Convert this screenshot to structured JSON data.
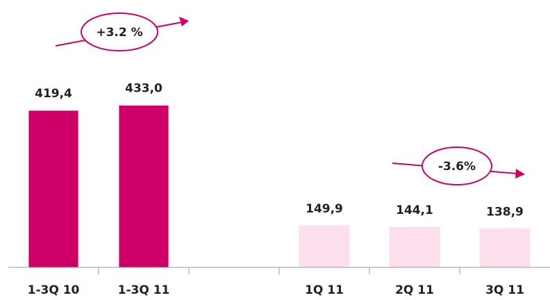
{
  "chart_data": {
    "type": "bar",
    "categories": [
      "1-3Q 10",
      "1-3Q 11",
      null,
      "1Q 11",
      "2Q 11",
      "3Q 11"
    ],
    "series": [
      {
        "color": "#cc0066",
        "values": [
          419.4,
          433.0,
          null,
          null,
          null,
          null
        ],
        "value_labels": [
          "419,4",
          "433,0",
          null,
          null,
          null,
          null
        ]
      },
      {
        "color": "#fde0ee",
        "axis": "y2",
        "values": [
          null,
          null,
          null,
          149.9,
          144.1,
          138.9
        ],
        "value_labels": [
          null,
          null,
          null,
          "149,9",
          "144,1",
          "138,9"
        ]
      }
    ],
    "ylim": [
      0,
      640
    ],
    "y2lim": [
      0,
      860
    ],
    "annotations": [
      "+3.2 %",
      "-3.6%"
    ]
  }
}
